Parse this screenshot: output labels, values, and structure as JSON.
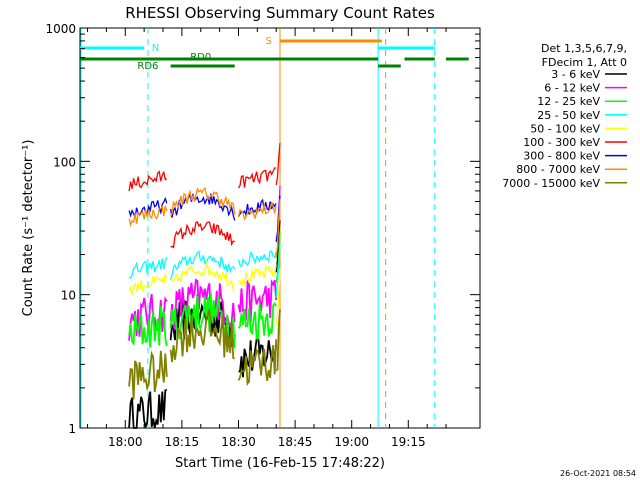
{
  "chart_data": {
    "type": "line",
    "title": "RHESSI Observing Summary Count Rates",
    "xlabel": "Start Time (16-Feb-15 17:48:22)",
    "ylabel": "Count Rate (s⁻¹ detector⁻¹)",
    "yscale": "log",
    "ylim": [
      1,
      1000
    ],
    "xlim": [
      "17:48",
      "19:34"
    ],
    "x_ticks": [
      "18:00",
      "18:15",
      "18:30",
      "18:45",
      "19:00",
      "19:15"
    ],
    "y_ticks": [
      "1",
      "10",
      "100",
      "1000"
    ],
    "grid": false,
    "legend_position": "right",
    "legend_header": [
      "Det 1,3,5,6,7,9,",
      "FDecim 1, Att 0"
    ],
    "timestamp": "26-Oct-2021 08:54",
    "data_segments": [
      [
        "18:01",
        "18:11"
      ],
      [
        "18:12",
        "18:29"
      ],
      [
        "18:30",
        "18:40"
      ],
      [
        "18:40",
        "18:41"
      ]
    ],
    "series": [
      {
        "name": "3 - 6 keV",
        "color": "#000000",
        "values": [
          1.3,
          7.0,
          3.5,
          40
        ]
      },
      {
        "name": "6 - 12 keV",
        "color": "#ff00ff",
        "values": [
          7,
          9.5,
          9,
          60
        ]
      },
      {
        "name": "12 - 25 keV",
        "color": "#00ff00",
        "values": [
          5.5,
          7.5,
          6.5,
          30
        ]
      },
      {
        "name": "25 - 50 keV",
        "color": "#00ffff",
        "values": [
          16,
          19,
          19,
          25
        ]
      },
      {
        "name": "50 - 100 keV",
        "color": "#ffff00",
        "values": [
          12,
          15.5,
          14,
          15
        ]
      },
      {
        "name": "100 - 300 keV",
        "color": "#ff0000",
        "values": [
          72,
          32,
          75,
          150
        ]
      },
      {
        "name": "300 - 800 keV",
        "color": "#0000ff",
        "values": [
          44,
          53,
          45,
          60
        ]
      },
      {
        "name": "800 - 7000 keV",
        "color": "#ff8c00",
        "values": [
          40,
          57,
          42,
          50
        ]
      },
      {
        "name": "7000 - 15000 keV",
        "color": "#808000",
        "values": [
          2.5,
          5.5,
          3.0,
          8
        ]
      }
    ],
    "annotations": {
      "night": {
        "label": "N",
        "color": "#00ffff",
        "intervals": [
          [
            "17:48",
            "18:05"
          ],
          [
            "19:07",
            "19:22"
          ]
        ],
        "boundaries": [
          "18:06",
          "19:22"
        ]
      },
      "saa": {
        "label": "S",
        "color": "#ff8c00",
        "intervals": [
          [
            "18:41",
            "19:08"
          ]
        ],
        "boundaries": [
          "19:09"
        ]
      },
      "rd0": {
        "label": "RD0",
        "color": "#008000",
        "intervals": [
          [
            "17:48",
            "18:30"
          ],
          [
            "18:29",
            "19:07"
          ],
          [
            "19:14",
            "19:22"
          ],
          [
            "19:25",
            "19:31"
          ]
        ]
      },
      "rd6": {
        "label": "RD6",
        "color": "#008000",
        "intervals": [
          [
            "18:12",
            "18:29"
          ],
          [
            "19:07",
            "19:13"
          ]
        ]
      }
    }
  }
}
